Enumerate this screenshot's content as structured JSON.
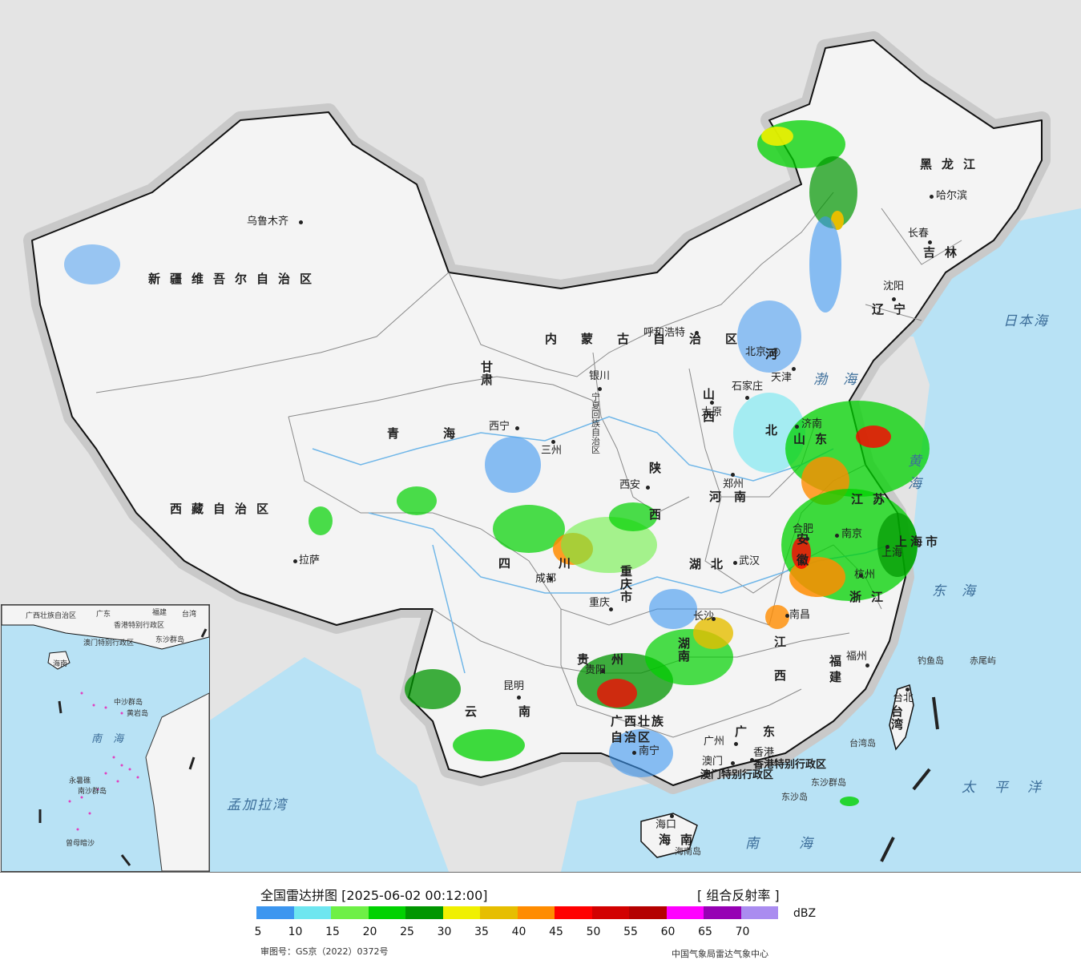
{
  "colors": {
    "sea": "#b8e2f5",
    "land": "#f4f4f4",
    "outside": "#e4e4e4",
    "border": "#111111",
    "river": "#6fb6e8"
  },
  "map": {
    "provinces": [
      {
        "id": "xinjiang",
        "label": "新疆维吾尔自治区"
      },
      {
        "id": "xizang",
        "label": "西藏自治区"
      },
      {
        "id": "qinghai",
        "label": "青海"
      },
      {
        "id": "gansu",
        "label": "甘肃"
      },
      {
        "id": "neimenggu",
        "label": "内蒙古自治区"
      },
      {
        "id": "heilongjiang",
        "label": "黑龙江"
      },
      {
        "id": "jilin",
        "label": "吉林"
      },
      {
        "id": "liaoning",
        "label": "辽宁"
      },
      {
        "id": "hebei",
        "label": "河北"
      },
      {
        "id": "shanxi",
        "label": "山西"
      },
      {
        "id": "shaanxi",
        "label": "陕西"
      },
      {
        "id": "ningxia",
        "label": "宁夏回族自治区"
      },
      {
        "id": "henan",
        "label": "河南"
      },
      {
        "id": "shandong",
        "label": "山东"
      },
      {
        "id": "jiangsu",
        "label": "江苏"
      },
      {
        "id": "anhui",
        "label": "安徽"
      },
      {
        "id": "hubei",
        "label": "湖北"
      },
      {
        "id": "sichuan",
        "label": "四川"
      },
      {
        "id": "chongqing",
        "label": "重庆市"
      },
      {
        "id": "zhejiang",
        "label": "浙江"
      },
      {
        "id": "shanghai",
        "label": "上海市"
      },
      {
        "id": "jiangxi",
        "label": "江西"
      },
      {
        "id": "hunan",
        "label": "湖南"
      },
      {
        "id": "guizhou",
        "label": "贵州"
      },
      {
        "id": "yunnan",
        "label": "云南"
      },
      {
        "id": "guangxi",
        "label": "广西壮族自治区"
      },
      {
        "id": "guangdong",
        "label": "广东"
      },
      {
        "id": "fujian",
        "label": "福建"
      },
      {
        "id": "taiwan",
        "label": "台湾"
      },
      {
        "id": "hainan",
        "label": "海南"
      },
      {
        "id": "hongkong",
        "label": "香港特别行政区"
      },
      {
        "id": "macao",
        "label": "澳门特别行政区"
      }
    ],
    "cities": [
      {
        "id": "urumqi",
        "label": "乌鲁木齐"
      },
      {
        "id": "lhasa",
        "label": "拉萨"
      },
      {
        "id": "xining",
        "label": "西宁"
      },
      {
        "id": "lanzhou",
        "label": "三州"
      },
      {
        "id": "yinchuan",
        "label": "银川"
      },
      {
        "id": "hohhot",
        "label": "呼和浩特"
      },
      {
        "id": "harbin",
        "label": "哈尔滨"
      },
      {
        "id": "changchun",
        "label": "长春"
      },
      {
        "id": "shenyang",
        "label": "沈阳"
      },
      {
        "id": "beijing",
        "label": "北京"
      },
      {
        "id": "tianjin",
        "label": "天津"
      },
      {
        "id": "shijiazhuang",
        "label": "石家庄"
      },
      {
        "id": "taiyuan",
        "label": "太原"
      },
      {
        "id": "jinan",
        "label": "济南"
      },
      {
        "id": "zhengzhou",
        "label": "郑州"
      },
      {
        "id": "xian",
        "label": "西安"
      },
      {
        "id": "hefei",
        "label": "合肥"
      },
      {
        "id": "nanjing",
        "label": "南京"
      },
      {
        "id": "shanghai_city",
        "label": "上海"
      },
      {
        "id": "hangzhou",
        "label": "杭州"
      },
      {
        "id": "wuhan",
        "label": "武汉"
      },
      {
        "id": "chengdu",
        "label": "成都"
      },
      {
        "id": "chongqing_city",
        "label": "重庆"
      },
      {
        "id": "changsha",
        "label": "长沙"
      },
      {
        "id": "nanchang",
        "label": "南昌"
      },
      {
        "id": "fuzhou",
        "label": "福州"
      },
      {
        "id": "taibei",
        "label": "台北"
      },
      {
        "id": "guiyang",
        "label": "贵阳"
      },
      {
        "id": "kunming",
        "label": "昆明"
      },
      {
        "id": "nanning",
        "label": "南宁"
      },
      {
        "id": "guangzhou",
        "label": "广州"
      },
      {
        "id": "aomen",
        "label": "澳门"
      },
      {
        "id": "xianggang",
        "label": "香港"
      },
      {
        "id": "haikou",
        "label": "海口"
      }
    ],
    "seas": [
      {
        "id": "japan_sea",
        "label": "日本海"
      },
      {
        "id": "bohai",
        "label": "渤海"
      },
      {
        "id": "yellow_sea",
        "label": "黄海"
      },
      {
        "id": "east_sea",
        "label": "东海"
      },
      {
        "id": "pacific",
        "label": "太平洋"
      },
      {
        "id": "south_sea",
        "label": "南海"
      },
      {
        "id": "bengal",
        "label": "孟加拉湾"
      }
    ],
    "islands": [
      {
        "id": "diaoyu",
        "label": "钓鱼岛"
      },
      {
        "id": "chiwei",
        "label": "赤尾屿"
      },
      {
        "id": "taiwan_island",
        "label": "台湾岛"
      },
      {
        "id": "dongsha_islands",
        "label": "东沙群岛"
      },
      {
        "id": "dongsha_island",
        "label": "东沙岛"
      },
      {
        "id": "hainan_island",
        "label": "海南岛"
      }
    ],
    "inset": {
      "labels": [
        "广西壮族自治区",
        "广东",
        "福建",
        "台湾",
        "香港特别行政区",
        "澳门特别行政区",
        "东沙群岛",
        "海南",
        "南海",
        "中沙群岛",
        "黄岩岛",
        "永暑礁",
        "南沙群岛",
        "曾母暗沙"
      ]
    }
  },
  "legend": {
    "title": "全国雷达拼图 [2025-06-02 00:12:00]",
    "product": "[ 组合反射率 ]",
    "unit": "dBZ",
    "colors": [
      "#3c96f0",
      "#6ee6f0",
      "#6ef046",
      "#00d200",
      "#009600",
      "#f0f000",
      "#e6be00",
      "#ff8c00",
      "#ff0000",
      "#d20000",
      "#b40000",
      "#ff00ff",
      "#9600b4",
      "#aa8cf0"
    ],
    "ticks": [
      "5",
      "10",
      "15",
      "20",
      "25",
      "30",
      "35",
      "40",
      "45",
      "50",
      "55",
      "60",
      "65",
      "70"
    ],
    "approval": "审图号：GS京（2022）0372号",
    "agency": "中国气象局雷达气象中心"
  }
}
